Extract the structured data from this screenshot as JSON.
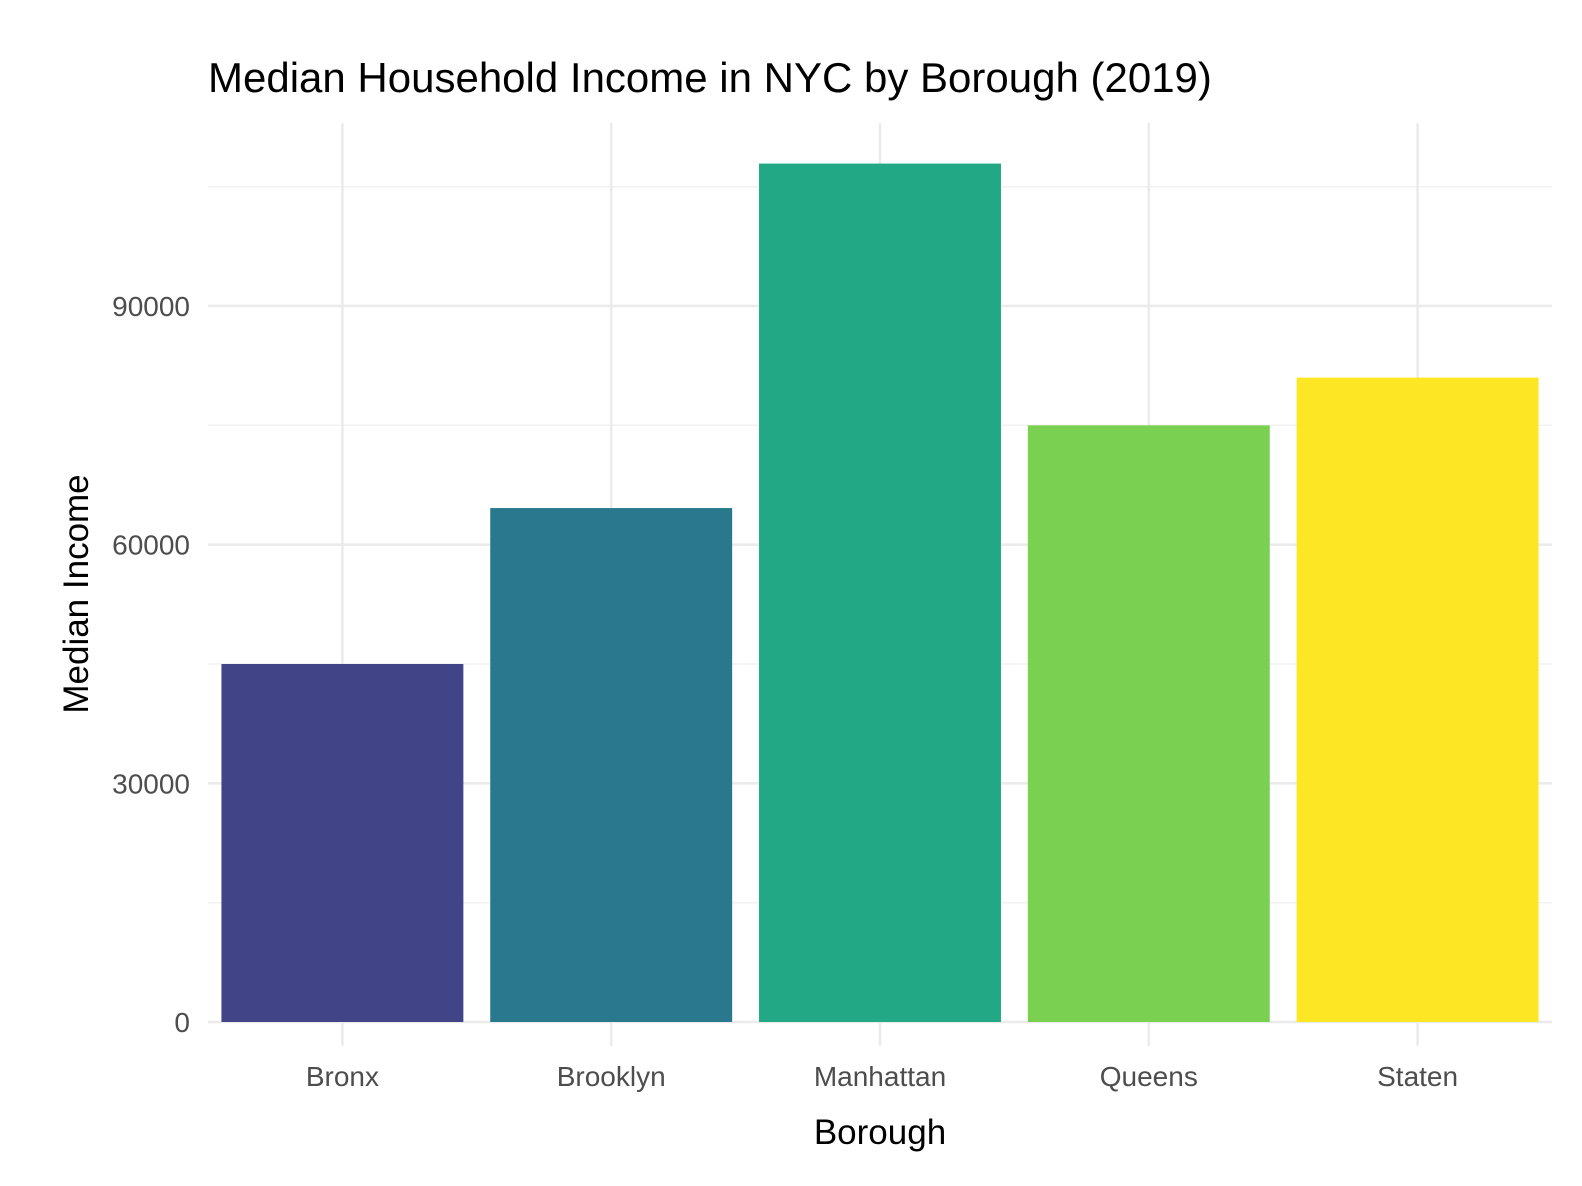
{
  "chart_data": {
    "type": "bar",
    "title": "Median Household Income in NYC by Borough (2019)",
    "xlabel": "Borough",
    "ylabel": "Median Income",
    "categories": [
      "Bronx",
      "Brooklyn",
      "Manhattan",
      "Queens",
      "Staten"
    ],
    "values": [
      45000,
      64600,
      107900,
      75000,
      81000
    ],
    "colors": [
      "#414487",
      "#2A788E",
      "#22A884",
      "#7AD151",
      "#FDE725"
    ],
    "yticks": [
      "0",
      "30000",
      "60000",
      "90000"
    ],
    "ylim": [
      0,
      113000
    ],
    "grid": true,
    "legend": "none"
  }
}
